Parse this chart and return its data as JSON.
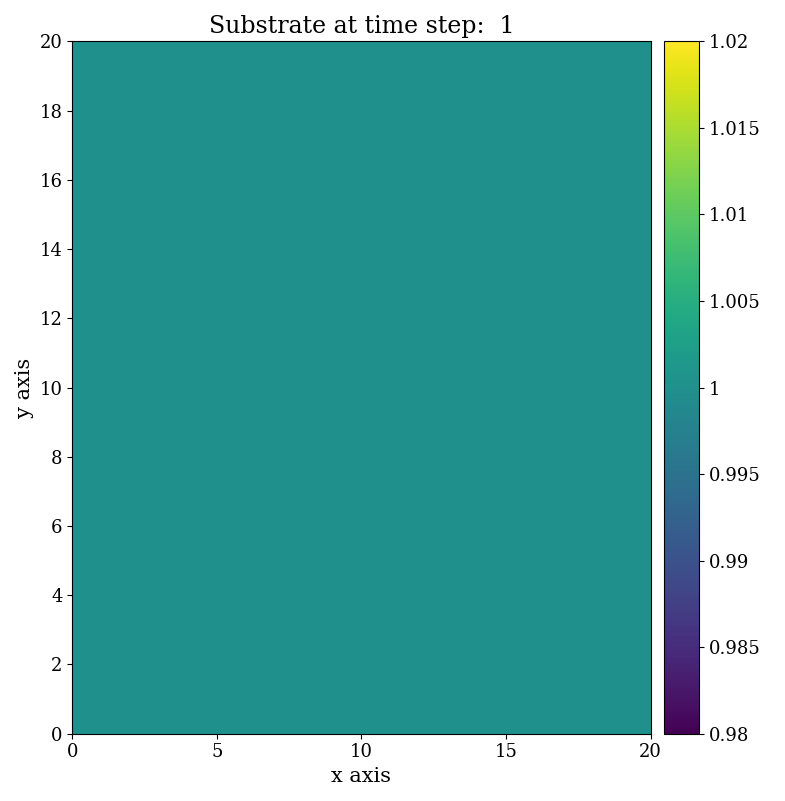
{
  "title": "Substrate at time step:  1",
  "xlabel": "x axis",
  "ylabel": "y axis",
  "xlim": [
    0,
    20
  ],
  "ylim": [
    0,
    20
  ],
  "xticks": [
    0,
    5,
    10,
    15,
    20
  ],
  "yticks": [
    0,
    2,
    4,
    6,
    8,
    10,
    12,
    14,
    16,
    18,
    20
  ],
  "colormap": "viridis",
  "vmin": 0.98,
  "vmax": 1.02,
  "data_value": 1.0,
  "grid_size": 200,
  "colorbar_ticks": [
    0.98,
    0.985,
    0.99,
    0.995,
    1.0,
    1.005,
    1.01,
    1.015,
    1.02
  ],
  "colorbar_ticklabels": [
    "0.98",
    "0.985",
    "0.99",
    "0.995",
    "1",
    "1.005",
    "1.01",
    "1.015",
    "1.02"
  ],
  "title_fontsize": 17,
  "label_fontsize": 15,
  "tick_fontsize": 13,
  "colorbar_fontsize": 13,
  "font_family": "serif"
}
